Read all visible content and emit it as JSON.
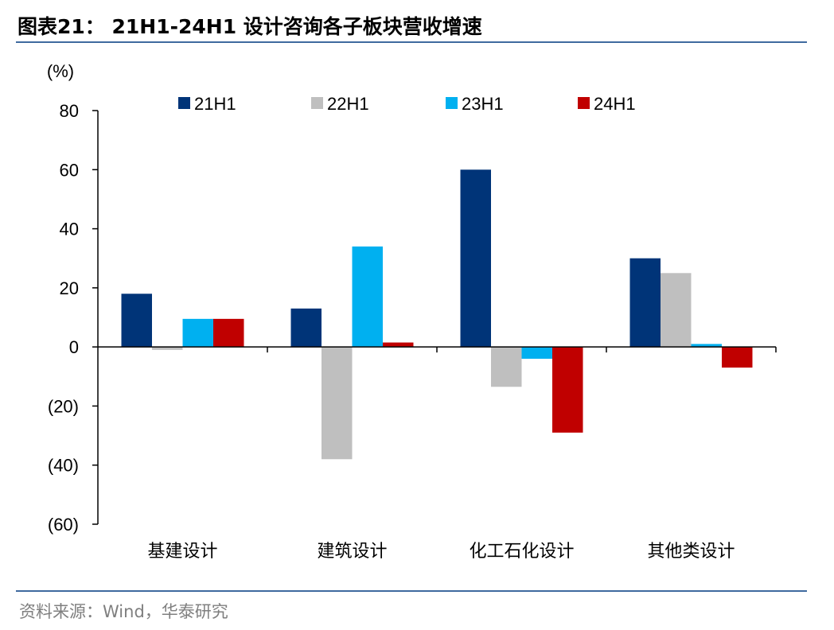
{
  "header": {
    "title": "图表21： 21H1-24H1 设计咨询各子板块营收增速"
  },
  "footer": {
    "source": "资料来源：Wind，华泰研究"
  },
  "chart_data": {
    "type": "bar",
    "unit_label": "(%)",
    "categories": [
      "基建设计",
      "建筑设计",
      "化工石化设计",
      "其他类设计"
    ],
    "series": [
      {
        "name": "21H1",
        "color": "#003478",
        "values": [
          18,
          13,
          60,
          30
        ]
      },
      {
        "name": "22H1",
        "color": "#bfbfbf",
        "values": [
          -1,
          -38,
          -13.5,
          25
        ]
      },
      {
        "name": "23H1",
        "color": "#00b0f0",
        "values": [
          9.5,
          34,
          -4,
          1
        ]
      },
      {
        "name": "24H1",
        "color": "#c00000",
        "values": [
          9.5,
          1.5,
          -29,
          -7
        ]
      }
    ],
    "ylim": [
      -60,
      80
    ],
    "yticks": [
      80,
      60,
      40,
      20,
      0,
      -20,
      -40,
      -60
    ],
    "ytick_labels": [
      "80",
      "60",
      "40",
      "20",
      "0",
      "(20)",
      "(40)",
      "(60)"
    ],
    "legend_position": "top",
    "grid": false
  }
}
